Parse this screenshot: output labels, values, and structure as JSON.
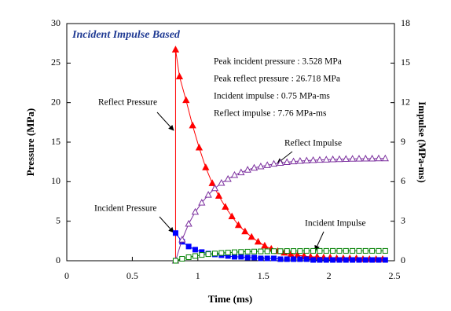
{
  "chart_data": {
    "type": "line",
    "title": "Incident Impulse Based",
    "x_label": "Time (ms)",
    "y_label": "Pressure (MPa)",
    "y2_label": "Impulse (MPa-ms)",
    "annotations": [
      "Peak incident pressure : 3.528 MPa",
      "Peak reflect pressure : 26.718 MPa",
      "Incident impulse : 0.75 MPa-ms",
      "Reflect impulse : 7.76 MPa-ms"
    ],
    "xlim": [
      0,
      2.5
    ],
    "xticks": [
      0,
      0.5,
      1,
      1.5,
      2,
      2.5
    ],
    "ylim": [
      0,
      30
    ],
    "yticks": [
      0,
      5,
      10,
      15,
      20,
      25,
      30
    ],
    "y2lim": [
      0,
      18
    ],
    "y2ticks": [
      0,
      3,
      6,
      9,
      12,
      15,
      18
    ],
    "series": [
      {
        "name": "Reflect Pressure",
        "color": "#ff0000",
        "marker": "triangle",
        "filled": true,
        "x": [
          0.83,
          0.83,
          0.86,
          0.91,
          0.96,
          1.01,
          1.06,
          1.11,
          1.16,
          1.21,
          1.26,
          1.31,
          1.36,
          1.41,
          1.46,
          1.51,
          1.56,
          1.61,
          1.66,
          1.71,
          1.76,
          1.81,
          1.86,
          1.91,
          1.96,
          2.01,
          2.06,
          2.11,
          2.16,
          2.21,
          2.26,
          2.31,
          2.36,
          2.41
        ],
        "values": [
          0,
          26.7,
          23.3,
          20.3,
          17.1,
          14.3,
          11.8,
          9.8,
          8.2,
          6.8,
          5.6,
          4.5,
          3.7,
          3.0,
          2.4,
          1.9,
          1.5,
          1.2,
          1.0,
          0.8,
          0.7,
          0.6,
          0.5,
          0.5,
          0.4,
          0.4,
          0.3,
          0.3,
          0.3,
          0.3,
          0.2,
          0.2,
          0.2,
          0.2
        ]
      },
      {
        "name": "Incident Pressure",
        "color": "#0000ff",
        "marker": "square",
        "filled": true,
        "x": [
          0.83,
          0.88,
          0.93,
          0.98,
          1.03,
          1.08,
          1.13,
          1.18,
          1.23,
          1.28,
          1.33,
          1.38,
          1.43,
          1.48,
          1.53,
          1.58,
          1.63,
          1.68,
          1.73,
          1.78,
          1.83,
          1.88,
          1.93,
          1.98,
          2.03,
          2.08,
          2.13,
          2.18,
          2.23,
          2.28,
          2.33,
          2.38,
          2.43
        ],
        "values": [
          3.5,
          2.4,
          1.8,
          1.4,
          1.1,
          0.9,
          0.8,
          0.7,
          0.6,
          0.5,
          0.5,
          0.4,
          0.4,
          0.3,
          0.3,
          0.3,
          0.2,
          0.2,
          0.2,
          0.2,
          0.2,
          0.1,
          0.1,
          0.1,
          0.1,
          0.1,
          0.1,
          0.1,
          0.1,
          0.1,
          0.1,
          0.1,
          0.1
        ]
      },
      {
        "name": "Reflect Impulse",
        "color": "#7b2f9e",
        "marker": "triangle",
        "filled": false,
        "axis": "y2",
        "x": [
          0.83,
          0.88,
          0.93,
          0.98,
          1.03,
          1.08,
          1.13,
          1.18,
          1.23,
          1.28,
          1.33,
          1.38,
          1.43,
          1.48,
          1.53,
          1.58,
          1.63,
          1.68,
          1.73,
          1.78,
          1.83,
          1.88,
          1.93,
          1.98,
          2.03,
          2.08,
          2.13,
          2.18,
          2.23,
          2.28,
          2.33,
          2.38,
          2.43
        ],
        "values": [
          0,
          1.6,
          2.8,
          3.7,
          4.4,
          5.0,
          5.5,
          5.9,
          6.2,
          6.5,
          6.7,
          6.9,
          7.05,
          7.15,
          7.25,
          7.35,
          7.42,
          7.48,
          7.53,
          7.57,
          7.6,
          7.63,
          7.65,
          7.67,
          7.69,
          7.7,
          7.72,
          7.73,
          7.74,
          7.75,
          7.75,
          7.76,
          7.76
        ]
      },
      {
        "name": "Incident Impulse",
        "color": "#008000",
        "marker": "square",
        "filled": false,
        "axis": "y2",
        "x": [
          0.83,
          0.88,
          0.93,
          0.98,
          1.03,
          1.08,
          1.13,
          1.18,
          1.23,
          1.28,
          1.33,
          1.38,
          1.43,
          1.48,
          1.53,
          1.58,
          1.63,
          1.68,
          1.73,
          1.78,
          1.83,
          1.88,
          1.93,
          1.98,
          2.03,
          2.08,
          2.13,
          2.18,
          2.23,
          2.28,
          2.33,
          2.38,
          2.43
        ],
        "values": [
          0,
          0.15,
          0.27,
          0.36,
          0.44,
          0.5,
          0.55,
          0.59,
          0.62,
          0.65,
          0.67,
          0.69,
          0.7,
          0.71,
          0.72,
          0.73,
          0.73,
          0.74,
          0.74,
          0.74,
          0.75,
          0.75,
          0.75,
          0.75,
          0.75,
          0.75,
          0.75,
          0.75,
          0.75,
          0.75,
          0.75,
          0.75,
          0.75
        ]
      }
    ]
  }
}
